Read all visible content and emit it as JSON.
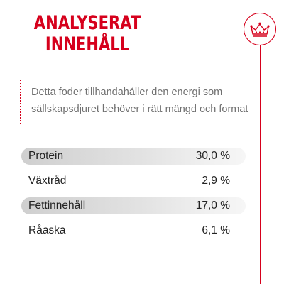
{
  "title": {
    "line1": "ANALYSERAT",
    "line2": "INNEHÅLL"
  },
  "logo": {
    "icon": "crown-icon",
    "color": "#d6001c"
  },
  "description": {
    "line1": "Detta foder tillhandahåller den energi som",
    "line2": "sällskapsdjuret behöver i rätt mängd och format"
  },
  "nutrients": [
    {
      "name": "Protein",
      "value": "30,0 %"
    },
    {
      "name": "Växtråd",
      "value": "2,9 %"
    },
    {
      "name": "Fettinnehåll",
      "value": "17,0 %"
    },
    {
      "name": "Råaska",
      "value": "6,1 %"
    }
  ],
  "colors": {
    "accent": "#d6001c",
    "text": "#222222",
    "description_text": "#707070"
  }
}
